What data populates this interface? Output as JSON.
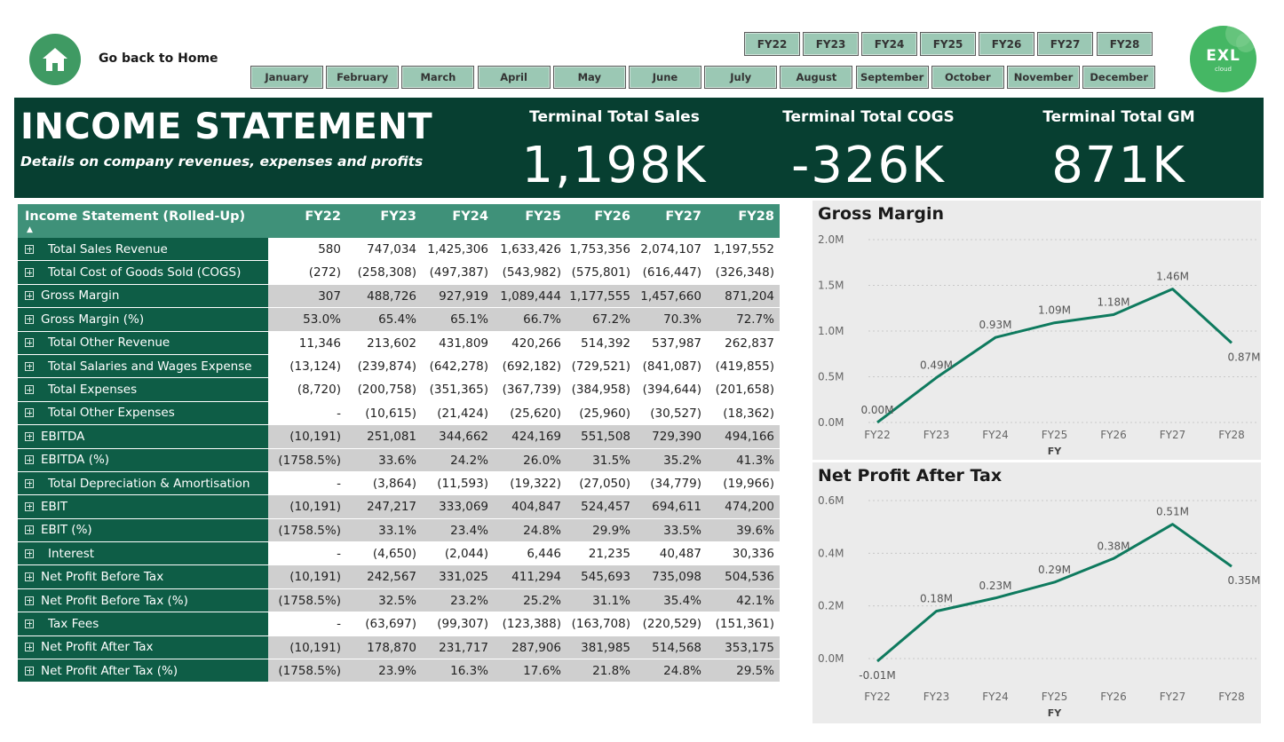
{
  "nav": {
    "home_label": "Go back to Home",
    "years": [
      "FY22",
      "FY23",
      "FY24",
      "FY25",
      "FY26",
      "FY27",
      "FY28"
    ],
    "months": [
      "January",
      "February",
      "March",
      "April",
      "May",
      "June",
      "July",
      "August",
      "September",
      "October",
      "November",
      "December"
    ]
  },
  "logo": {
    "text": "EXL",
    "sub": "cloud"
  },
  "banner": {
    "title": "INCOME STATEMENT",
    "subtitle": "Details on company revenues, expenses and profits",
    "kpis": [
      {
        "label": "Terminal Total Sales",
        "value": "1,198K"
      },
      {
        "label": "Terminal Total COGS",
        "value": "-326K"
      },
      {
        "label": "Terminal Total GM",
        "value": "871K"
      }
    ]
  },
  "table": {
    "title": "Income Statement (Rolled-Up)",
    "columns": [
      "FY22",
      "FY23",
      "FY24",
      "FY25",
      "FY26",
      "FY27",
      "FY28"
    ],
    "rows": [
      {
        "label": "Total Sales Revenue",
        "indent": true,
        "shade": "white",
        "values": [
          "580",
          "747,034",
          "1,425,306",
          "1,633,426",
          "1,753,356",
          "2,074,107",
          "1,197,552"
        ]
      },
      {
        "label": "Total Cost of Goods Sold (COGS)",
        "indent": true,
        "shade": "white",
        "values": [
          "(272)",
          "(258,308)",
          "(497,387)",
          "(543,982)",
          "(575,801)",
          "(616,447)",
          "(326,348)"
        ]
      },
      {
        "label": "Gross Margin",
        "indent": false,
        "shade": "grey",
        "values": [
          "307",
          "488,726",
          "927,919",
          "1,089,444",
          "1,177,555",
          "1,457,660",
          "871,204"
        ]
      },
      {
        "label": "Gross Margin (%)",
        "indent": false,
        "shade": "grey",
        "values": [
          "53.0%",
          "65.4%",
          "65.1%",
          "66.7%",
          "67.2%",
          "70.3%",
          "72.7%"
        ]
      },
      {
        "label": "Total Other Revenue",
        "indent": true,
        "shade": "white",
        "values": [
          "11,346",
          "213,602",
          "431,809",
          "420,266",
          "514,392",
          "537,987",
          "262,837"
        ]
      },
      {
        "label": "Total Salaries and Wages Expense",
        "indent": true,
        "shade": "white",
        "values": [
          "(13,124)",
          "(239,874)",
          "(642,278)",
          "(692,182)",
          "(729,521)",
          "(841,087)",
          "(419,855)"
        ]
      },
      {
        "label": "Total Expenses",
        "indent": true,
        "shade": "white",
        "values": [
          "(8,720)",
          "(200,758)",
          "(351,365)",
          "(367,739)",
          "(384,958)",
          "(394,644)",
          "(201,658)"
        ]
      },
      {
        "label": "Total Other Expenses",
        "indent": true,
        "shade": "white",
        "values": [
          "-",
          "(10,615)",
          "(21,424)",
          "(25,620)",
          "(25,960)",
          "(30,527)",
          "(18,362)"
        ]
      },
      {
        "label": "EBITDA",
        "indent": false,
        "shade": "grey",
        "values": [
          "(10,191)",
          "251,081",
          "344,662",
          "424,169",
          "551,508",
          "729,390",
          "494,166"
        ]
      },
      {
        "label": "EBITDA (%)",
        "indent": false,
        "shade": "grey",
        "values": [
          "(1758.5%)",
          "33.6%",
          "24.2%",
          "26.0%",
          "31.5%",
          "35.2%",
          "41.3%"
        ]
      },
      {
        "label": "Total Depreciation & Amortisation",
        "indent": true,
        "shade": "white",
        "values": [
          "-",
          "(3,864)",
          "(11,593)",
          "(19,322)",
          "(27,050)",
          "(34,779)",
          "(19,966)"
        ]
      },
      {
        "label": "EBIT",
        "indent": false,
        "shade": "grey",
        "values": [
          "(10,191)",
          "247,217",
          "333,069",
          "404,847",
          "524,457",
          "694,611",
          "474,200"
        ]
      },
      {
        "label": "EBIT (%)",
        "indent": false,
        "shade": "grey",
        "values": [
          "(1758.5%)",
          "33.1%",
          "23.4%",
          "24.8%",
          "29.9%",
          "33.5%",
          "39.6%"
        ]
      },
      {
        "label": "Interest",
        "indent": true,
        "shade": "white",
        "values": [
          "-",
          "(4,650)",
          "(2,044)",
          "6,446",
          "21,235",
          "40,487",
          "30,336"
        ]
      },
      {
        "label": "Net Profit Before Tax",
        "indent": false,
        "shade": "grey",
        "values": [
          "(10,191)",
          "242,567",
          "331,025",
          "411,294",
          "545,693",
          "735,098",
          "504,536"
        ]
      },
      {
        "label": "Net Profit Before Tax (%)",
        "indent": false,
        "shade": "grey",
        "values": [
          "(1758.5%)",
          "32.5%",
          "23.2%",
          "25.2%",
          "31.1%",
          "35.4%",
          "42.1%"
        ]
      },
      {
        "label": "Tax Fees",
        "indent": true,
        "shade": "white",
        "values": [
          "-",
          "(63,697)",
          "(99,307)",
          "(123,388)",
          "(163,708)",
          "(220,529)",
          "(151,361)"
        ]
      },
      {
        "label": "Net Profit After Tax",
        "indent": false,
        "shade": "grey",
        "values": [
          "(10,191)",
          "178,870",
          "231,717",
          "287,906",
          "381,985",
          "514,568",
          "353,175"
        ]
      },
      {
        "label": "Net Profit After Tax (%)",
        "indent": false,
        "shade": "grey",
        "values": [
          "(1758.5%)",
          "23.9%",
          "16.3%",
          "17.6%",
          "21.8%",
          "24.8%",
          "29.5%"
        ]
      }
    ]
  },
  "colors": {
    "accent": "#0e7a5e",
    "banner": "#073f31",
    "header": "#3f9179",
    "row_label": "#0e5d46",
    "button": "#9bc8b4"
  },
  "chart_data": [
    {
      "type": "line",
      "title": "Gross Margin",
      "xlabel": "FY",
      "ylabel": "",
      "categories": [
        "FY22",
        "FY23",
        "FY24",
        "FY25",
        "FY26",
        "FY27",
        "FY28"
      ],
      "values": [
        0.0003,
        0.49,
        0.93,
        1.09,
        1.18,
        1.46,
        0.87
      ],
      "data_labels": [
        "0.00M",
        "0.49M",
        "0.93M",
        "1.09M",
        "1.18M",
        "1.46M",
        "0.87M"
      ],
      "ylim": [
        0,
        2.0
      ],
      "yticks": [
        0,
        0.5,
        1.0,
        1.5,
        2.0
      ],
      "ytick_labels": [
        "0.0M",
        "0.5M",
        "1.0M",
        "1.5M",
        "2.0M"
      ],
      "grid": true
    },
    {
      "type": "line",
      "title": "Net Profit After Tax",
      "xlabel": "FY",
      "ylabel": "",
      "categories": [
        "FY22",
        "FY23",
        "FY24",
        "FY25",
        "FY26",
        "FY27",
        "FY28"
      ],
      "values": [
        -0.01,
        0.18,
        0.23,
        0.29,
        0.38,
        0.51,
        0.35
      ],
      "data_labels": [
        "-0.01M",
        "0.18M",
        "0.23M",
        "0.29M",
        "0.38M",
        "0.51M",
        "0.35M"
      ],
      "ylim": [
        0,
        0.6
      ],
      "yticks": [
        0,
        0.2,
        0.4,
        0.6
      ],
      "ytick_labels": [
        "0.0M",
        "0.2M",
        "0.4M",
        "0.6M"
      ],
      "grid": true
    }
  ]
}
